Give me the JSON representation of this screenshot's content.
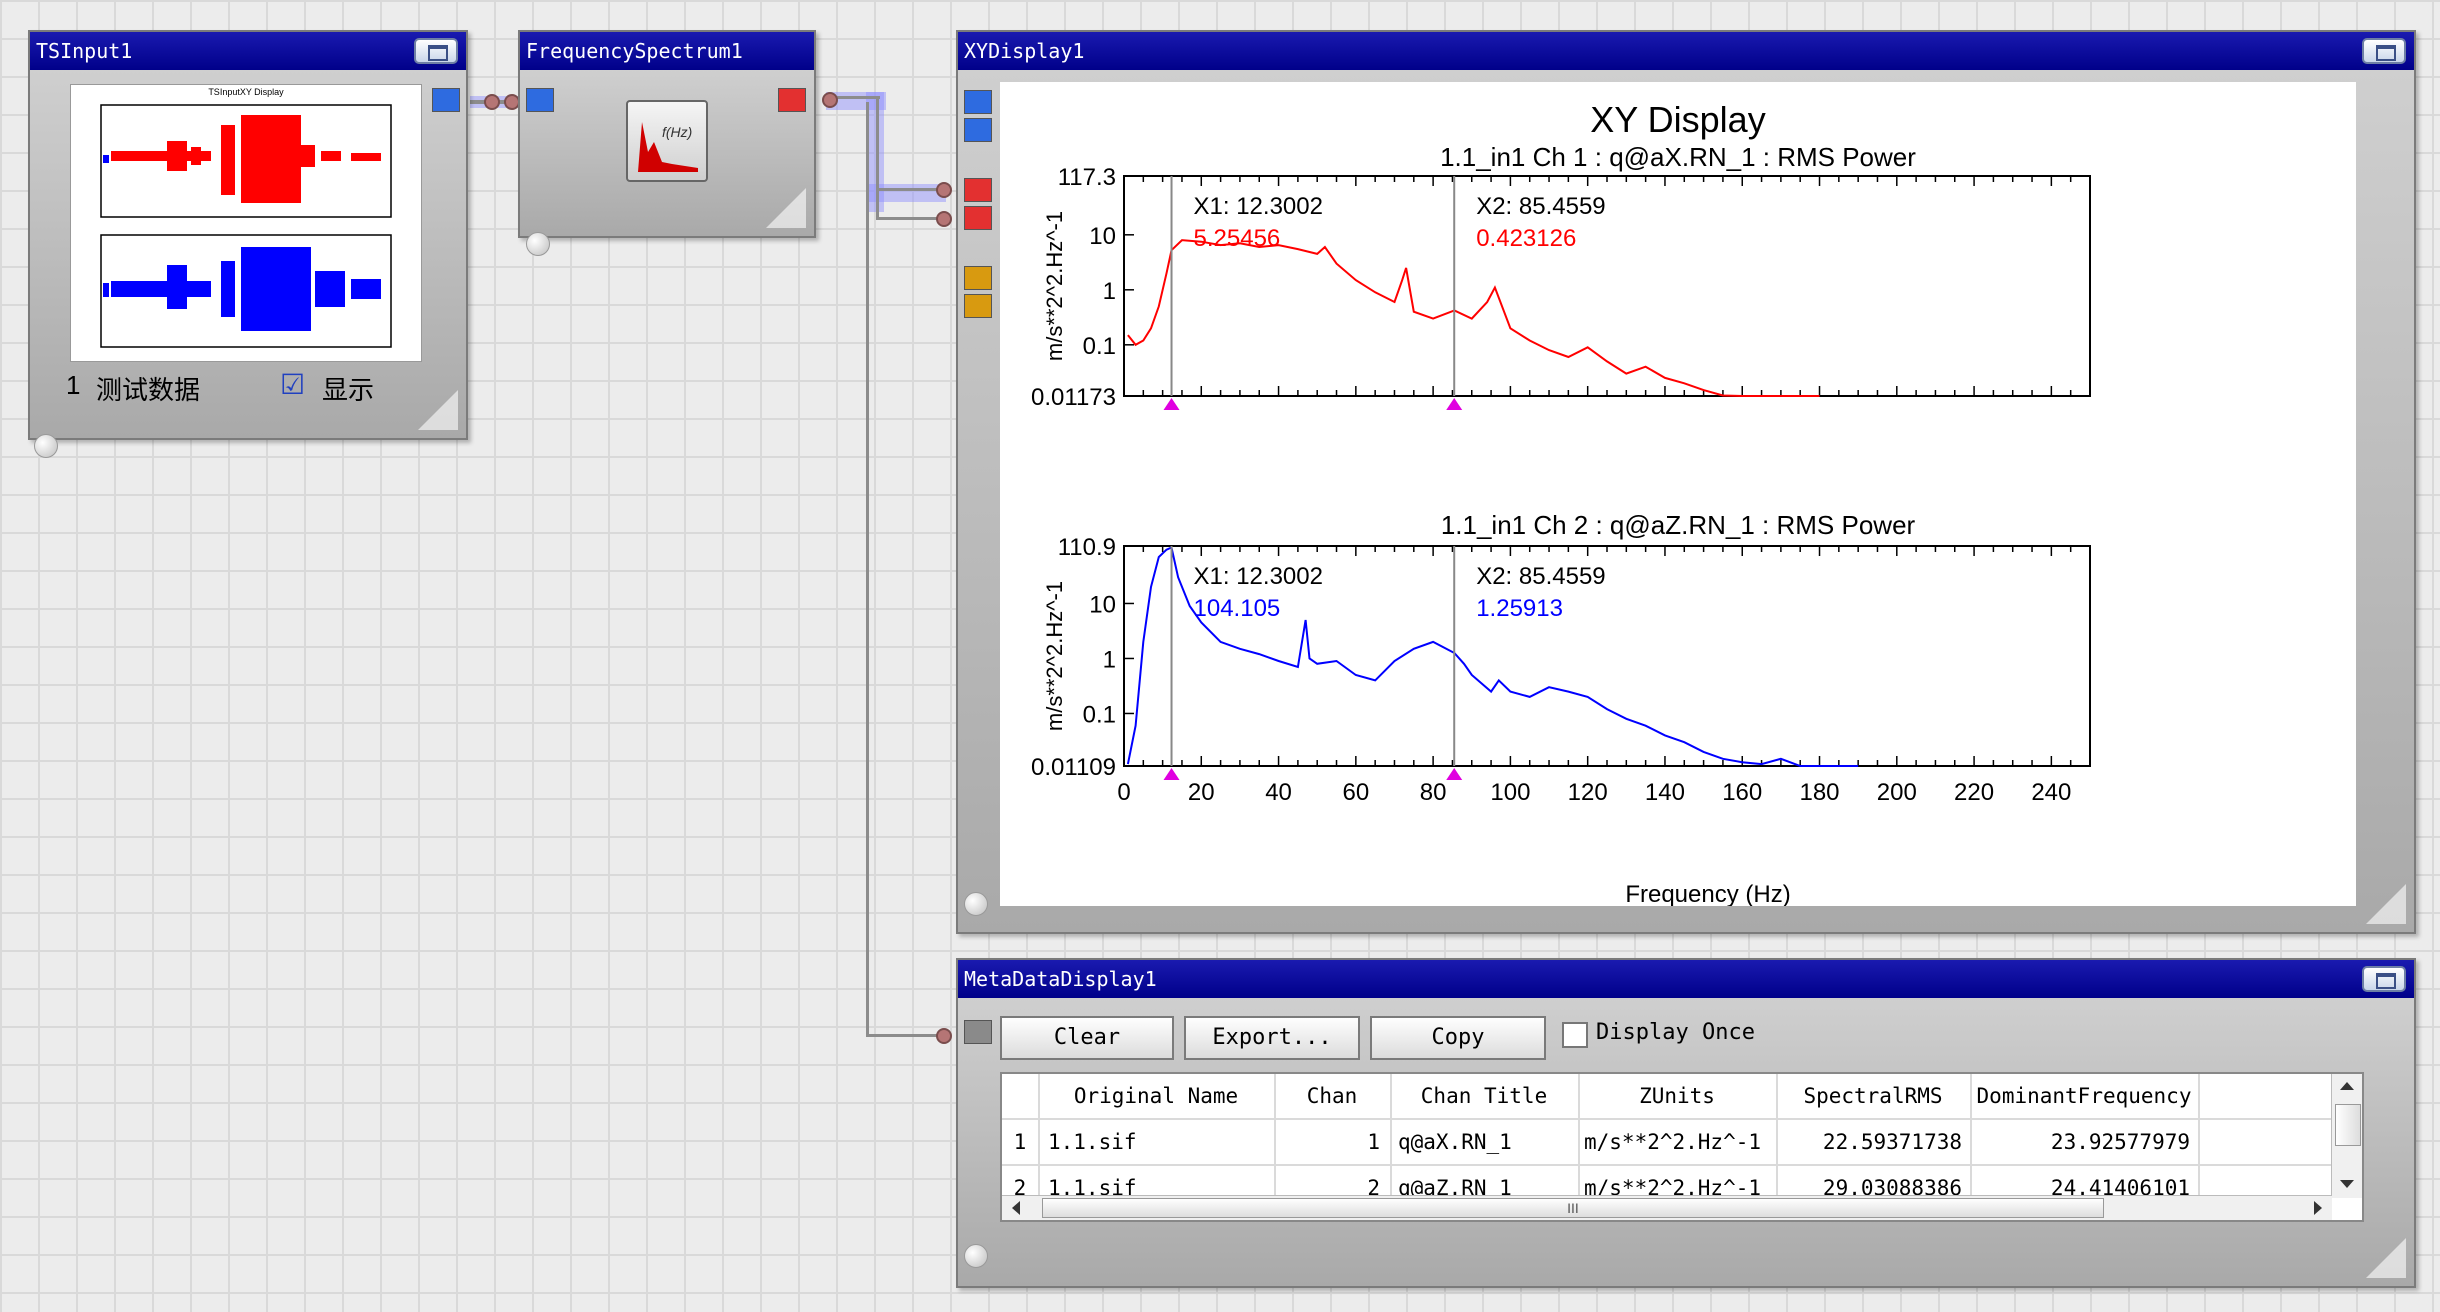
{
  "nodes": {
    "ts_input": {
      "title": "TSInput1",
      "preview_title": "TSInputXY Display",
      "row_index": "1",
      "row_label": "测试数据",
      "show_checked": "☑",
      "show_label": "显示"
    },
    "freq_spectrum": {
      "title": "FrequencySpectrum1",
      "icon_label": "f(Hz)"
    },
    "xy_display": {
      "title": "XYDisplay1"
    },
    "meta_display": {
      "title": "MetaDataDisplay1"
    }
  },
  "colors": {
    "ch1": "#ff0000",
    "ch2": "#0000ff",
    "cursor_marker": "#e000e0",
    "titlebar": "#00008a"
  },
  "chart_data": [
    {
      "type": "line",
      "title": "XY Display",
      "subtitle": "1.1_in1  Ch 1 : q@aX.RN_1 : RMS Power",
      "ylabel": "m/s**2^2.Hz^-1",
      "ylog": true,
      "ylim": [
        0.01173,
        117.3
      ],
      "yticks": [
        "117.3",
        "10",
        "1",
        "0.1",
        "0.01173"
      ],
      "xlim": [
        0,
        250
      ],
      "cursors": [
        {
          "label": "X1: 12.3002",
          "value": "5.25456",
          "x": 12.3
        },
        {
          "label": "X2: 85.4559",
          "value": "0.423126",
          "x": 85.46
        }
      ],
      "series": [
        {
          "color": "#ff0000",
          "x": [
            1,
            3,
            5,
            7,
            9,
            11,
            12.3,
            15,
            20,
            25,
            30,
            35,
            40,
            45,
            50,
            52,
            55,
            60,
            65,
            70,
            72,
            73,
            75,
            80,
            85.5,
            90,
            94,
            96,
            100,
            105,
            110,
            115,
            120,
            125,
            130,
            135,
            140,
            145,
            150,
            155,
            160,
            170,
            180
          ],
          "y": [
            0.15,
            0.1,
            0.12,
            0.2,
            0.5,
            2,
            5.25,
            8,
            7.5,
            6.5,
            7,
            6,
            6.5,
            5.5,
            4.5,
            6,
            3,
            1.5,
            0.9,
            0.6,
            1.5,
            2.5,
            0.4,
            0.3,
            0.42,
            0.3,
            0.6,
            1.1,
            0.2,
            0.12,
            0.08,
            0.06,
            0.09,
            0.05,
            0.03,
            0.04,
            0.025,
            0.02,
            0.015,
            0.012,
            0.011,
            0.009,
            0.009
          ]
        }
      ]
    },
    {
      "type": "line",
      "subtitle": "1.1_in1  Ch 2 : q@aZ.RN_1 : RMS Power",
      "ylabel": "m/s**2^2.Hz^-1",
      "xlabel": "Frequency (Hz)",
      "ylog": true,
      "ylim": [
        0.01109,
        110.9
      ],
      "yticks": [
        "110.9",
        "10",
        "1",
        "0.1",
        "0.01109"
      ],
      "xlim": [
        0,
        250
      ],
      "xticks": [
        0,
        20,
        40,
        60,
        80,
        100,
        120,
        140,
        160,
        180,
        200,
        220,
        240
      ],
      "cursors": [
        {
          "label": "X1: 12.3002",
          "value": "104.105",
          "x": 12.3
        },
        {
          "label": "X2: 85.4559",
          "value": "1.25913",
          "x": 85.46
        }
      ],
      "series": [
        {
          "color": "#0000ff",
          "x": [
            1,
            3,
            5,
            7,
            9,
            11,
            12.3,
            14,
            17,
            20,
            25,
            30,
            35,
            40,
            45,
            47,
            48,
            50,
            55,
            60,
            65,
            70,
            75,
            80,
            85.5,
            88,
            90,
            95,
            97,
            100,
            105,
            110,
            115,
            120,
            125,
            130,
            135,
            140,
            145,
            150,
            155,
            160,
            165,
            170,
            175,
            180,
            190
          ],
          "y": [
            0.012,
            0.06,
            2,
            20,
            70,
            95,
            104.1,
            30,
            9,
            4.5,
            2,
            1.5,
            1.2,
            0.9,
            0.7,
            5,
            1,
            0.8,
            0.9,
            0.5,
            0.4,
            0.9,
            1.5,
            2,
            1.26,
            0.8,
            0.5,
            0.25,
            0.4,
            0.25,
            0.2,
            0.3,
            0.25,
            0.2,
            0.12,
            0.08,
            0.06,
            0.04,
            0.03,
            0.02,
            0.015,
            0.013,
            0.012,
            0.015,
            0.011,
            0.011,
            0.011
          ]
        }
      ]
    }
  ],
  "meta": {
    "buttons": {
      "clear": "Clear",
      "export": "Export...",
      "copy": "Copy"
    },
    "display_once_label": "Display Once",
    "columns": [
      "Original Name",
      "Chan",
      "Chan Title",
      "ZUnits",
      "SpectralRMS",
      "DominantFrequency"
    ],
    "rows": [
      {
        "idx": "1",
        "name": "1.1.sif",
        "chan": "1",
        "title": "q@aX.RN_1",
        "zunits": "m/s**2^2.Hz^-1",
        "rms": "22.59371738",
        "dom": "23.92577979"
      },
      {
        "idx": "2",
        "name": "1.1.sif",
        "chan": "2",
        "title": "q@aZ.RN_1",
        "zunits": "m/s**2^2.Hz^-1",
        "rms": "29.03088386",
        "dom": "24.41406101"
      }
    ],
    "hscroll_grip": "III"
  }
}
